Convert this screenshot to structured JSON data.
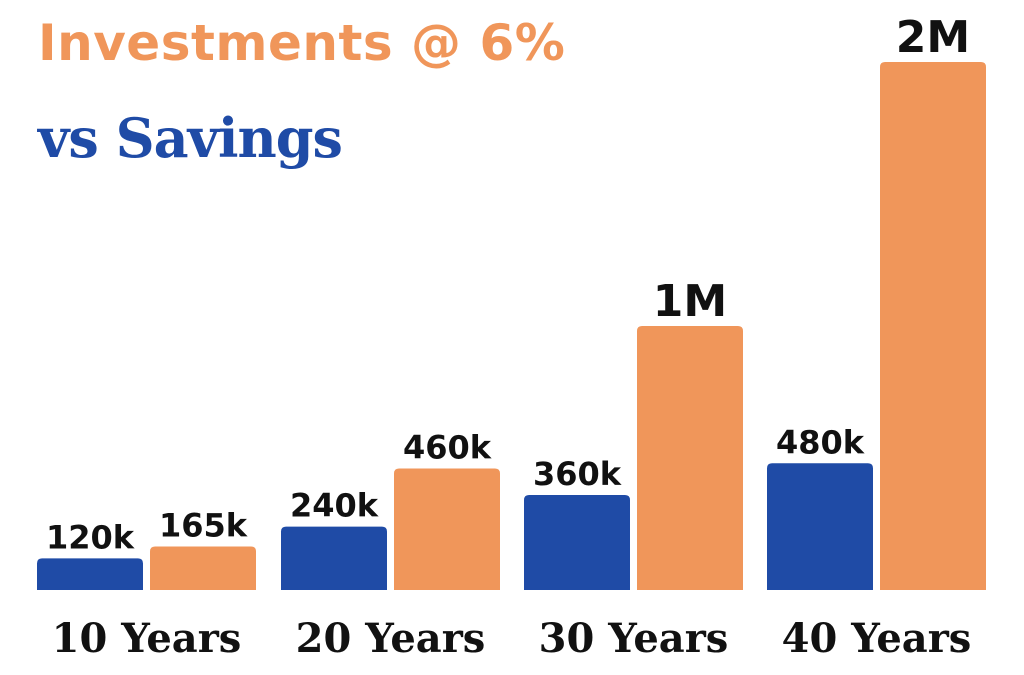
{
  "chart_data": {
    "type": "bar",
    "title": "Investments @ 6%",
    "subtitle": "vs Savings",
    "categories": [
      "10 Years",
      "20 Years",
      "30 Years",
      "40 Years"
    ],
    "series": [
      {
        "name": "Savings",
        "color": "#1f4ba6",
        "values": [
          120000,
          240000,
          360000,
          480000
        ],
        "labels": [
          "120k",
          "240k",
          "360k",
          "480k"
        ]
      },
      {
        "name": "Investments @ 6%",
        "color": "#f0965a",
        "values": [
          165000,
          460000,
          1000000,
          2000000
        ],
        "labels": [
          "165k",
          "460k",
          "1M",
          "2M"
        ]
      }
    ],
    "xlabel": "",
    "ylabel": "",
    "ylim": [
      0,
      2000000
    ],
    "grid": false,
    "legend": "none"
  }
}
